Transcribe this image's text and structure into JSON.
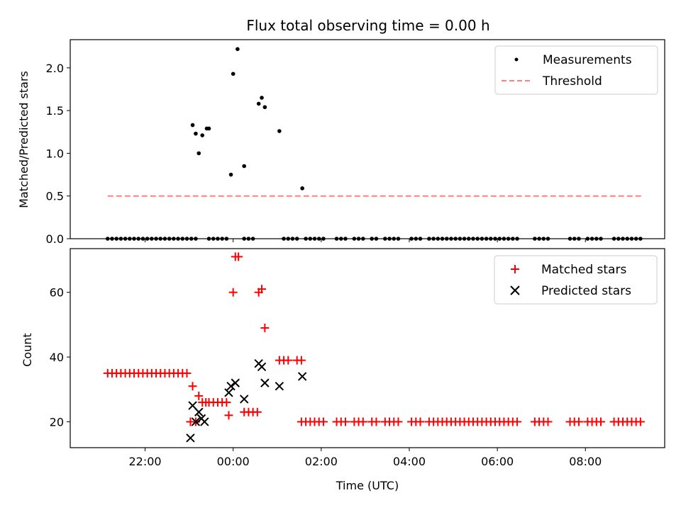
{
  "chart_data": {
    "title": "Flux total observing time = 0.00 h",
    "xlabel": "Time (UTC)",
    "x_unit": "hours relative to 00:00 UTC",
    "xlim": [
      -3.7,
      9.8
    ],
    "xticks": [
      {
        "value": -2,
        "label": "22:00"
      },
      {
        "value": 0,
        "label": "00:00"
      },
      {
        "value": 2,
        "label": "02:00"
      },
      {
        "value": 4,
        "label": "04:00"
      },
      {
        "value": 6,
        "label": "06:00"
      },
      {
        "value": 8,
        "label": "08:00"
      }
    ],
    "panels": [
      {
        "type": "scatter",
        "ylabel": "Matched/Predicted stars",
        "ylim": [
          0,
          2.33
        ],
        "yticks": [
          {
            "value": 0.0,
            "label": "0.0"
          },
          {
            "value": 0.5,
            "label": "0.5"
          },
          {
            "value": 1.0,
            "label": "1.0"
          },
          {
            "value": 1.5,
            "label": "1.5"
          },
          {
            "value": 2.0,
            "label": "2.0"
          }
        ],
        "legend": {
          "position": "upper right"
        },
        "series": [
          {
            "name": "Measurements",
            "marker": "dot",
            "color": "#000000",
            "x": [
              -2.85,
              -2.75,
              -2.65,
              -2.55,
              -2.45,
              -2.35,
              -2.25,
              -2.15,
              -2.05,
              -1.95,
              -1.85,
              -1.75,
              -1.65,
              -1.55,
              -1.45,
              -1.35,
              -1.25,
              -1.15,
              -1.05,
              -0.95,
              -0.85,
              -0.55,
              -0.45,
              -0.35,
              -0.25,
              -0.15,
              0.25,
              0.35,
              0.45,
              1.15,
              1.25,
              1.35,
              1.45,
              1.65,
              1.75,
              1.85,
              1.95,
              2.05,
              2.35,
              2.45,
              2.55,
              2.75,
              2.85,
              2.95,
              3.15,
              3.25,
              3.45,
              3.55,
              3.65,
              3.75,
              4.05,
              4.15,
              4.25,
              4.45,
              4.55,
              4.65,
              4.75,
              4.85,
              4.95,
              5.05,
              5.15,
              5.25,
              5.35,
              5.45,
              5.55,
              5.65,
              5.75,
              5.85,
              5.95,
              6.05,
              6.15,
              6.25,
              6.35,
              6.45,
              6.85,
              6.95,
              7.05,
              7.15,
              7.65,
              7.75,
              7.85,
              8.05,
              8.15,
              8.25,
              8.35,
              8.65,
              8.75,
              8.85,
              8.95,
              9.05,
              9.15,
              9.25,
              -0.92,
              -0.85,
              -0.78,
              -0.7,
              -0.6,
              -0.55,
              -0.05,
              0.0,
              0.1,
              0.25,
              0.58,
              0.65,
              0.72,
              1.05,
              1.57
            ],
            "y": [
              0,
              0,
              0,
              0,
              0,
              0,
              0,
              0,
              0,
              0,
              0,
              0,
              0,
              0,
              0,
              0,
              0,
              0,
              0,
              0,
              0,
              0,
              0,
              0,
              0,
              0,
              0,
              0,
              0,
              0,
              0,
              0,
              0,
              0,
              0,
              0,
              0,
              0,
              0,
              0,
              0,
              0,
              0,
              0,
              0,
              0,
              0,
              0,
              0,
              0,
              0,
              0,
              0,
              0,
              0,
              0,
              0,
              0,
              0,
              0,
              0,
              0,
              0,
              0,
              0,
              0,
              0,
              0,
              0,
              0,
              0,
              0,
              0,
              0,
              0,
              0,
              0,
              0,
              0,
              0,
              0,
              0,
              0,
              0,
              0,
              0,
              0,
              0,
              0,
              0,
              0,
              0,
              1.33,
              1.23,
              1.0,
              1.21,
              1.29,
              1.29,
              0.75,
              1.93,
              2.22,
              0.85,
              1.58,
              1.65,
              1.54,
              1.26,
              0.59
            ]
          },
          {
            "name": "Threshold",
            "type": "line",
            "style": "dashed",
            "color": "#ff8080",
            "x": [
              -2.85,
              9.3
            ],
            "y": [
              0.5,
              0.5
            ]
          }
        ]
      },
      {
        "type": "scatter",
        "ylabel": "Count",
        "ylim": [
          12,
          73.5
        ],
        "yticks": [
          {
            "value": 20,
            "label": "20"
          },
          {
            "value": 40,
            "label": "40"
          },
          {
            "value": 60,
            "label": "60"
          }
        ],
        "legend": {
          "position": "upper right"
        },
        "series": [
          {
            "name": "Matched stars",
            "marker": "plus",
            "color": "#ff0000",
            "x": [
              -2.85,
              -2.75,
              -2.65,
              -2.55,
              -2.45,
              -2.35,
              -2.25,
              -2.15,
              -2.05,
              -1.95,
              -1.85,
              -1.75,
              -1.65,
              -1.55,
              -1.45,
              -1.35,
              -1.25,
              -1.15,
              -1.05,
              -0.97,
              -0.92,
              -0.85,
              -0.78,
              -0.7,
              -0.62,
              -0.55,
              -0.45,
              -0.35,
              -0.25,
              -0.15,
              -0.1,
              0.0,
              0.05,
              0.12,
              0.25,
              0.35,
              0.45,
              0.55,
              0.58,
              0.65,
              0.72,
              1.05,
              1.15,
              1.25,
              1.45,
              1.55,
              1.55,
              1.65,
              1.75,
              1.85,
              1.95,
              2.05,
              2.35,
              2.45,
              2.55,
              2.75,
              2.85,
              2.95,
              3.15,
              3.25,
              3.45,
              3.55,
              3.65,
              3.75,
              4.05,
              4.15,
              4.25,
              4.45,
              4.55,
              4.65,
              4.75,
              4.85,
              4.95,
              5.05,
              5.15,
              5.25,
              5.35,
              5.45,
              5.55,
              5.65,
              5.75,
              5.85,
              5.95,
              6.05,
              6.15,
              6.25,
              6.35,
              6.45,
              6.85,
              6.95,
              7.05,
              7.15,
              7.65,
              7.75,
              7.85,
              8.05,
              8.15,
              8.25,
              8.35,
              8.65,
              8.75,
              8.85,
              8.95,
              9.05,
              9.15,
              9.25
            ],
            "y": [
              35,
              35,
              35,
              35,
              35,
              35,
              35,
              35,
              35,
              35,
              35,
              35,
              35,
              35,
              35,
              35,
              35,
              35,
              35,
              20,
              31,
              20,
              28,
              26,
              26,
              26,
              26,
              26,
              26,
              26,
              22,
              60,
              71,
              71,
              23,
              23,
              23,
              23,
              60,
              61,
              49,
              39,
              39,
              39,
              39,
              39,
              20,
              20,
              20,
              20,
              20,
              20,
              20,
              20,
              20,
              20,
              20,
              20,
              20,
              20,
              20,
              20,
              20,
              20,
              20,
              20,
              20,
              20,
              20,
              20,
              20,
              20,
              20,
              20,
              20,
              20,
              20,
              20,
              20,
              20,
              20,
              20,
              20,
              20,
              20,
              20,
              20,
              20,
              20,
              20,
              20,
              20,
              20,
              20,
              20,
              20,
              20,
              20,
              20,
              20,
              20,
              20,
              20,
              20,
              20,
              20
            ]
          },
          {
            "name": "Predicted stars",
            "marker": "x",
            "color": "#000000",
            "x": [
              -0.97,
              -0.92,
              -0.85,
              -0.78,
              -0.72,
              -0.65,
              -0.1,
              -0.05,
              0.05,
              0.25,
              0.58,
              0.65,
              0.72,
              1.05,
              1.57
            ],
            "y": [
              15,
              25,
              20,
              23,
              21,
              20,
              29,
              31,
              32,
              27,
              38,
              37,
              32,
              31,
              34
            ]
          }
        ]
      }
    ]
  }
}
